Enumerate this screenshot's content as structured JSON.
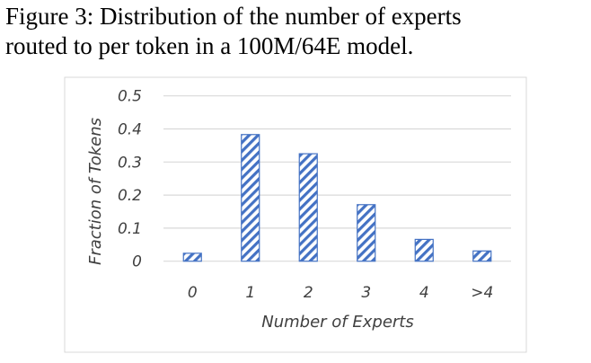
{
  "caption": {
    "line1": "Figure 3:  Distribution of the number of experts",
    "line2": "routed to per token in a 100M/64E model."
  },
  "chart_data": {
    "type": "bar",
    "categories": [
      "0",
      "1",
      "2",
      "3",
      "4",
      ">4"
    ],
    "values": [
      0.024,
      0.383,
      0.325,
      0.171,
      0.066,
      0.031
    ],
    "title": "",
    "xlabel": "Number of Experts",
    "ylabel": "Fraction of Tokens",
    "ylim": [
      0,
      0.5
    ],
    "yticks": [
      "0",
      "0.1",
      "0.2",
      "0.3",
      "0.4",
      "0.5"
    ],
    "grid": true,
    "bar_fill": "diagonal-hatch",
    "color": "#4472C4"
  }
}
